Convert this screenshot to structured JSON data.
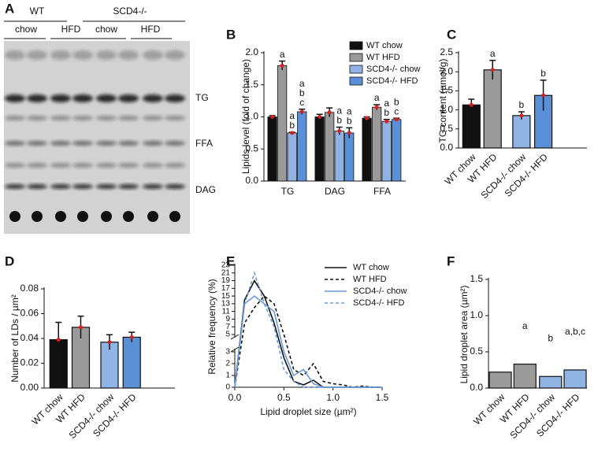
{
  "blot": {
    "panel": "A",
    "groups": [
      "WT",
      "SCD4-/-"
    ],
    "diets": [
      "chow",
      "HFD",
      "chow",
      "HFD"
    ],
    "bands": [
      "TG",
      "FFA",
      "DAG"
    ]
  },
  "chart_data": [
    {
      "type": "grouped-bar",
      "panel": "B",
      "ylabel": "Lipids level (fold of change)",
      "categories": [
        "TG",
        "DAG",
        "FFA"
      ],
      "ylim": [
        0,
        2.0
      ],
      "yticks": [
        {
          "value": 0,
          "label": "0.0"
        },
        {
          "value": 0.5,
          "label": "0.5"
        },
        {
          "value": 1.0,
          "label": "1.0"
        },
        {
          "value": 1.5,
          "label": "1.5"
        },
        {
          "value": 2.0,
          "label": "2.0"
        }
      ],
      "legend": "top-right",
      "series": [
        {
          "name": "WT chow",
          "color": "#111111",
          "values": [
            1.0,
            1.0,
            0.98
          ],
          "errors": [
            0.02,
            0.04,
            0.02
          ]
        },
        {
          "name": "WT HFD",
          "color": "#9a9a9a",
          "values": [
            1.8,
            1.07,
            1.15
          ],
          "errors": [
            0.07,
            0.07,
            0.04
          ],
          "letters": [
            [
              "a"
            ],
            null,
            [
              "a"
            ]
          ]
        },
        {
          "name": "SCD4-/- chow",
          "color": "#8fb4e3",
          "values": [
            0.75,
            0.78,
            0.93
          ],
          "errors": [
            0.01,
            0.06,
            0.03
          ],
          "letters": [
            [
              "a",
              "b"
            ],
            [
              "a",
              "b"
            ],
            [
              "a",
              "b"
            ]
          ]
        },
        {
          "name": "SCD4-/- HFD",
          "color": "#5b8fd6",
          "values": [
            1.08,
            0.75,
            0.96
          ],
          "errors": [
            0.04,
            0.08,
            0.02
          ],
          "letters": [
            [
              "a",
              "b",
              "c"
            ],
            [
              "a",
              "b"
            ],
            [
              "b",
              "c"
            ]
          ]
        }
      ]
    },
    {
      "type": "bar",
      "panel": "C",
      "ylabel": "TG content (µmol/g)",
      "categories": [
        "WT chow",
        "WT HFD",
        "SCD4-/- chow",
        "SCD4-/- HFD"
      ],
      "values": [
        1.13,
        2.05,
        0.85,
        1.38
      ],
      "errors": [
        0.15,
        0.25,
        0.1,
        0.4
      ],
      "colors": [
        "#111111",
        "#9a9a9a",
        "#8fb4e3",
        "#5b8fd6"
      ],
      "letters": [
        null,
        [
          "a"
        ],
        [
          "b"
        ],
        [
          "b"
        ]
      ],
      "ylim": [
        0,
        2.5
      ],
      "yticks": [
        {
          "value": 0,
          "label": "0.0"
        },
        {
          "value": 0.5,
          "label": "0.5"
        },
        {
          "value": 1.0,
          "label": "1.0"
        },
        {
          "value": 1.5,
          "label": "1.5"
        },
        {
          "value": 2.0,
          "label": "2.0"
        },
        {
          "value": 2.5,
          "label": "2.5"
        }
      ]
    },
    {
      "type": "bar",
      "panel": "D",
      "ylabel": "Number of LDs / µm²",
      "categories": [
        "WT chow",
        "WT HFD",
        "SCD4-/- chow",
        "SCD4-/- HFD"
      ],
      "values": [
        0.039,
        0.049,
        0.037,
        0.041
      ],
      "errors": [
        0.014,
        0.009,
        0.006,
        0.004
      ],
      "colors": [
        "#111111",
        "#9a9a9a",
        "#8fb4e3",
        "#5b8fd6"
      ],
      "ylim": [
        0,
        0.08
      ],
      "yticks": [
        {
          "value": 0,
          "label": "0.00"
        },
        {
          "value": 0.02,
          "label": "0.02"
        },
        {
          "value": 0.04,
          "label": "0.04"
        },
        {
          "value": 0.06,
          "label": "0.06"
        },
        {
          "value": 0.08,
          "label": "0.08"
        }
      ]
    },
    {
      "type": "line",
      "panel": "E",
      "ylabel": "Relative frequency (%)",
      "xlabel": "Lipid droplet size (µm²)",
      "x": [
        0,
        0.1,
        0.2,
        0.3,
        0.4,
        0.5,
        0.6,
        0.7,
        0.8,
        0.9,
        1.0,
        1.1,
        1.2,
        1.3,
        1.4,
        1.5
      ],
      "xlim": [
        0,
        1.5
      ],
      "xticks": [
        {
          "value": 0,
          "label": "0.0"
        },
        {
          "value": 0.5,
          "label": "0.5"
        },
        {
          "value": 1.0,
          "label": "1.0"
        },
        {
          "value": 1.5,
          "label": "1.5"
        }
      ],
      "ylim_lower": [
        0,
        3
      ],
      "ylim_upper": [
        5,
        23
      ],
      "yticks_lower": [
        0,
        1,
        2,
        3
      ],
      "yticks_upper": [
        5,
        7,
        9,
        11,
        13,
        15,
        17,
        19,
        21,
        23
      ],
      "legend": "top-right",
      "series": [
        {
          "name": "WT chow",
          "color": "#111111",
          "dashed": false,
          "values": [
            0,
            14,
            19,
            15,
            8,
            2.5,
            0.5,
            0.2,
            0.6,
            0,
            0,
            0,
            0,
            0,
            0,
            0
          ]
        },
        {
          "name": "WT HFD",
          "color": "#111111",
          "dashed": true,
          "values": [
            0,
            8,
            12,
            15,
            13,
            5,
            1.5,
            1,
            2,
            0.5,
            0.3,
            0.2,
            0,
            0.1,
            0,
            0
          ]
        },
        {
          "name": "SCD4-/- chow",
          "color": "#6a9bd8",
          "dashed": false,
          "values": [
            0,
            13,
            15,
            13,
            11,
            3,
            1,
            1.5,
            0.3,
            0,
            0,
            0,
            0,
            0,
            0,
            0
          ]
        },
        {
          "name": "SCD4-/- HFD",
          "color": "#6a9bd8",
          "dashed": true,
          "values": [
            0,
            13,
            21,
            13,
            7,
            1.5,
            0.5,
            0,
            0,
            0,
            0,
            0,
            0,
            0,
            0,
            0
          ]
        }
      ]
    },
    {
      "type": "bar",
      "panel": "F",
      "ylabel": "Lipid droplet area (µm²)",
      "categories": [
        "WT chow",
        "WT HFD",
        "SCD4-/- chow",
        "SCD4-/- HFD"
      ],
      "values": [
        0.22,
        0.33,
        0.16,
        0.25
      ],
      "colors": [
        "#9a9a9a",
        "#9a9a9a",
        "#8fb4e3",
        "#8fb4e3"
      ],
      "letters": [
        null,
        [
          "a"
        ],
        [
          "b"
        ],
        [
          "a,b,c"
        ]
      ],
      "ylim": [
        0,
        1.5
      ],
      "yticks": [
        {
          "value": 0,
          "label": "0.0"
        },
        {
          "value": 0.5,
          "label": "0.5"
        },
        {
          "value": 1.0,
          "label": "1.0"
        },
        {
          "value": 1.5,
          "label": "1.5"
        }
      ]
    }
  ]
}
